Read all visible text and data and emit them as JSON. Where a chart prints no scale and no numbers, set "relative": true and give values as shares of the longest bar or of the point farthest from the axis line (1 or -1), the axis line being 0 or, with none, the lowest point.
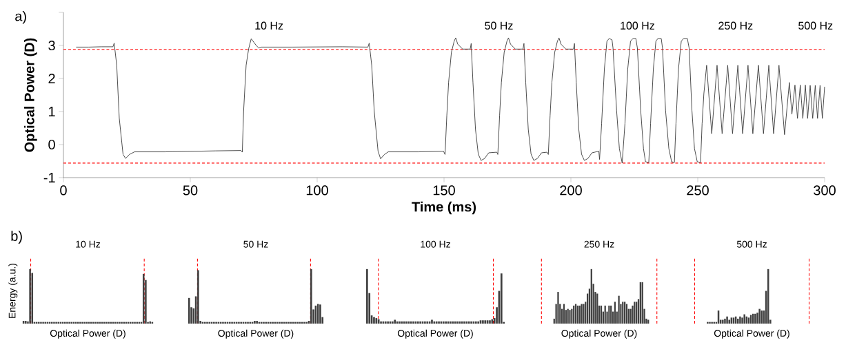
{
  "chart_data": [
    {
      "type": "line",
      "xlabel": "Time (ms)",
      "ylabel": "Optical Power (D)",
      "color": "#404040",
      "xlim": [
        0,
        300
      ],
      "ylim": [
        -1,
        4
      ],
      "xticks": [
        0,
        50,
        100,
        150,
        200,
        250,
        300
      ],
      "yticks": [
        -1,
        0,
        1,
        2,
        3,
        {
          "value": 4,
          "label": null
        }
      ],
      "x": [
        5,
        10,
        15,
        19.5,
        20,
        21,
        22,
        23.5,
        24.5,
        26,
        28,
        40,
        60,
        70,
        70.5,
        71,
        72,
        73,
        74,
        75,
        76,
        77,
        78,
        90,
        110,
        120,
        120.5,
        121.5,
        122.5,
        124,
        125,
        126.5,
        128,
        140,
        149.8,
        150.4,
        151.1,
        151.8,
        152.9,
        154.0,
        154.6,
        155.4,
        157.3,
        160.3,
        160.7,
        161.4,
        162.4,
        163.5,
        164.6,
        166.0,
        167.6,
        170.8,
        171.2,
        171.9,
        172.6,
        173.7,
        174.8,
        175.4,
        176.2,
        178.1,
        181.1,
        181.5,
        182.2,
        183.2,
        184.3,
        185.4,
        186.8,
        188.4,
        190.6,
        191.1,
        191.8,
        192.5,
        193.6,
        194.7,
        195.3,
        196.1,
        198.0,
        201.0,
        201.4,
        202.1,
        203.1,
        204.2,
        205.3,
        206.7,
        208.3,
        211.0,
        211.3,
        212.1,
        213.2,
        214.2,
        215.1,
        216.2,
        216.6,
        218.0,
        219.1,
        220.2,
        221.3,
        222.4,
        223.5,
        224.5,
        225.6,
        226.2,
        227.5,
        228.6,
        229.4,
        230.7,
        231.4,
        232.5,
        233.5,
        234.3,
        235.6,
        236.1,
        237.3,
        238.6,
        239.7,
        240.8,
        241.4,
        242.4,
        243.5,
        244.4,
        245.9,
        246.6,
        247.7,
        248.7,
        249.8,
        251.1,
        251.7,
        252.4,
        253.5,
        255.5,
        257.6,
        259.6,
        261.8,
        263.7,
        265.8,
        267.7,
        269.8,
        271.7,
        273.9,
        275.9,
        278.0,
        279.9,
        282.0,
        284.2,
        286.1,
        287.1,
        288.3,
        289.3,
        290.4,
        291.4,
        292.4,
        293.3,
        294.3,
        295.3,
        296.3,
        297.2,
        298.2,
        299.1,
        300
      ],
      "values": [
        2.95,
        2.95,
        2.96,
        2.96,
        3.07,
        2.4,
        0.8,
        -0.3,
        -0.42,
        -0.3,
        -0.22,
        -0.22,
        -0.19,
        -0.18,
        -0.23,
        1.0,
        2.4,
        2.9,
        3.2,
        3.1,
        3.0,
        2.92,
        2.95,
        2.95,
        2.96,
        2.95,
        3.07,
        2.4,
        1.0,
        -0.2,
        -0.43,
        -0.3,
        -0.22,
        -0.22,
        -0.2,
        -0.3,
        0.88,
        1.88,
        2.79,
        3.13,
        3.23,
        3.04,
        2.89,
        2.89,
        3.06,
        1.88,
        0.46,
        -0.29,
        -0.48,
        -0.42,
        -0.25,
        -0.23,
        -0.3,
        0.88,
        1.88,
        2.79,
        3.13,
        3.23,
        3.04,
        2.89,
        2.89,
        3.06,
        1.88,
        0.46,
        -0.29,
        -0.48,
        -0.42,
        -0.25,
        -0.23,
        -0.3,
        0.88,
        1.88,
        2.79,
        3.13,
        3.23,
        3.04,
        2.89,
        2.89,
        3.06,
        1.88,
        0.46,
        -0.29,
        -0.48,
        -0.42,
        -0.25,
        -0.2,
        -0.45,
        0.63,
        2.29,
        3.13,
        3.21,
        3.17,
        2.92,
        1.04,
        -0.12,
        -0.56,
        0.63,
        2.29,
        3.13,
        3.21,
        3.21,
        2.92,
        1.04,
        -0.12,
        -0.52,
        -0.54,
        0.63,
        2.29,
        3.13,
        3.21,
        3.21,
        2.92,
        1.04,
        -0.12,
        -0.52,
        -0.54,
        0.63,
        2.29,
        3.13,
        3.21,
        3.21,
        2.92,
        1.04,
        -0.12,
        -0.52,
        -0.54,
        0.63,
        1.54,
        2.4,
        0.33,
        2.4,
        0.33,
        2.4,
        0.33,
        2.4,
        0.33,
        2.4,
        0.33,
        2.4,
        0.33,
        2.4,
        0.33,
        2.4,
        0.3,
        1.88,
        0.92,
        1.8,
        0.79,
        1.8,
        0.79,
        1.8,
        0.79,
        1.79,
        0.79,
        1.79,
        0.79,
        1.79,
        0.79,
        1.75
      ],
      "ref_lines": [
        {
          "axis": "y",
          "value": 2.88,
          "color": "#ff0000",
          "line_style": "dashed"
        },
        {
          "axis": "y",
          "value": -0.56,
          "color": "#ff0000",
          "line_style": "dashed"
        }
      ],
      "annotations": [
        "a)",
        "10 Hz",
        "50 Hz",
        "100 Hz",
        "250 Hz",
        "500 Hz"
      ]
    },
    {
      "type": "bar",
      "relative": true,
      "title": "10 Hz",
      "xlabel": "Optical Power (D)",
      "ylabel": "Energy (a.u.)",
      "color": "#404040",
      "categories": [
        null,
        null,
        null,
        null,
        null,
        null,
        null,
        null,
        null,
        null,
        null,
        null,
        null,
        null,
        null,
        null,
        null,
        null,
        null,
        null,
        null,
        null,
        null,
        null,
        null,
        null,
        null,
        null,
        null,
        null,
        null,
        null,
        null,
        null,
        null,
        null,
        null,
        null,
        null,
        null,
        null,
        null,
        null,
        null,
        null,
        null,
        null,
        null,
        null,
        null,
        null,
        null,
        null,
        null,
        null,
        null,
        null,
        null,
        null,
        null
      ],
      "values": [
        0.05,
        0.05,
        0.04,
        1.0,
        0.93,
        0.03,
        0.03,
        0.03,
        0.03,
        0.03,
        0.03,
        0.03,
        0.03,
        0.03,
        0.03,
        0.03,
        0.03,
        0.03,
        0.03,
        0.03,
        0.03,
        0.03,
        0.03,
        0.03,
        0.03,
        0.03,
        0.03,
        0.03,
        0.03,
        0.03,
        0.03,
        0.03,
        0.03,
        0.03,
        0.03,
        0.03,
        0.03,
        0.03,
        0.03,
        0.03,
        0.03,
        0.03,
        0.03,
        0.03,
        0.03,
        0.03,
        0.03,
        0.03,
        0.03,
        0.03,
        0.03,
        0.03,
        0.03,
        0.03,
        0.03,
        0.91,
        0.8,
        0.03,
        0.04,
        0.03
      ],
      "annotations": [
        "b)"
      ]
    },
    {
      "type": "bar",
      "relative": true,
      "title": "50 Hz",
      "xlabel": "Optical Power (D)",
      "color": "#404040",
      "categories": [
        null,
        null,
        null,
        null,
        null,
        null,
        null,
        null,
        null,
        null,
        null,
        null,
        null,
        null,
        null,
        null,
        null,
        null,
        null,
        null,
        null,
        null,
        null,
        null,
        null,
        null,
        null,
        null,
        null,
        null,
        null,
        null,
        null,
        null,
        null,
        null,
        null,
        null,
        null,
        null,
        null,
        null,
        null,
        null,
        null,
        null,
        null,
        null,
        null,
        null,
        null,
        null,
        null,
        null,
        null,
        null,
        null,
        null,
        null,
        null
      ],
      "values": [
        0.47,
        0.3,
        0.28,
        0.5,
        0.98,
        0.05,
        0.03,
        0.03,
        0.03,
        0.03,
        0.03,
        0.03,
        0.03,
        0.03,
        0.03,
        0.03,
        0.03,
        0.03,
        0.03,
        0.03,
        0.03,
        0.03,
        0.03,
        0.03,
        0.03,
        0.03,
        0.03,
        0.03,
        0.03,
        0.05,
        0.05,
        0.03,
        0.03,
        0.03,
        0.03,
        0.03,
        0.03,
        0.03,
        0.03,
        0.03,
        0.03,
        0.03,
        0.03,
        0.03,
        0.03,
        0.03,
        0.03,
        0.03,
        0.03,
        0.03,
        0.03,
        0.03,
        0.03,
        0.05,
        1.0,
        0.26,
        0.33,
        0.36,
        0.35,
        0.12
      ]
    },
    {
      "type": "bar",
      "relative": true,
      "title": "100 Hz",
      "xlabel": "Optical Power (D)",
      "color": "#404040",
      "categories": [
        null,
        null,
        null,
        null,
        null,
        null,
        null,
        null,
        null,
        null,
        null,
        null,
        null,
        null,
        null,
        null,
        null,
        null,
        null,
        null,
        null,
        null,
        null,
        null,
        null,
        null,
        null,
        null,
        null,
        null,
        null,
        null,
        null,
        null,
        null,
        null,
        null,
        null,
        null,
        null,
        null,
        null,
        null,
        null,
        null,
        null,
        null,
        null,
        null,
        null,
        null,
        null,
        null,
        null,
        null,
        null,
        null,
        null,
        null,
        null
      ],
      "values": [
        1.0,
        0.56,
        0.15,
        0.12,
        0.1,
        0.08,
        0.04,
        0.04,
        0.04,
        0.04,
        0.04,
        0.04,
        0.07,
        0.04,
        0.04,
        0.04,
        0.04,
        0.04,
        0.04,
        0.04,
        0.04,
        0.04,
        0.04,
        0.04,
        0.04,
        0.04,
        0.04,
        0.04,
        0.07,
        0.04,
        0.04,
        0.04,
        0.04,
        0.04,
        0.04,
        0.04,
        0.04,
        0.04,
        0.04,
        0.04,
        0.04,
        0.04,
        0.04,
        0.04,
        0.04,
        0.04,
        0.04,
        0.04,
        0.04,
        0.06,
        0.06,
        0.06,
        0.06,
        0.06,
        0.08,
        0.1,
        0.3,
        0.6,
        0.92,
        0.03
      ]
    },
    {
      "type": "bar",
      "relative": true,
      "title": "250 Hz",
      "xlabel": "Optical Power (D)",
      "color": "#404040",
      "categories": [
        null,
        null,
        null,
        null,
        null,
        null,
        null,
        null,
        null,
        null,
        null,
        null,
        null,
        null,
        null,
        null,
        null,
        null,
        null,
        null,
        null,
        null,
        null,
        null,
        null,
        null,
        null,
        null,
        null,
        null,
        null,
        null,
        null,
        null,
        null,
        null,
        null,
        null,
        null,
        null,
        null,
        null,
        null,
        null,
        null,
        null,
        null,
        null,
        null
      ],
      "values": [
        0.09,
        0.36,
        0.58,
        0.36,
        0.27,
        0.36,
        0.25,
        0.27,
        0.25,
        0.27,
        0.33,
        0.36,
        0.33,
        0.33,
        0.36,
        0.36,
        0.4,
        0.55,
        0.64,
        1.0,
        0.73,
        0.58,
        0.55,
        0.33,
        0.33,
        0.22,
        0.33,
        0.22,
        0.33,
        0.33,
        0.22,
        0.4,
        0.22,
        0.51,
        0.36,
        0.4,
        0.4,
        0.36,
        0.27,
        0.27,
        0.33,
        0.4,
        0.4,
        0.45,
        0.76,
        0.76,
        0.27,
        0.09,
        0.07
      ]
    },
    {
      "type": "bar",
      "relative": true,
      "title": "500 Hz",
      "xlabel": "Optical Power (D)",
      "color": "#404040",
      "categories": [
        null,
        null,
        null,
        null,
        null,
        null,
        null,
        null,
        null,
        null,
        null,
        null,
        null,
        null,
        null,
        null,
        null,
        null,
        null,
        null,
        null,
        null,
        null,
        null,
        null,
        null,
        null,
        null,
        null,
        null
      ],
      "values": [
        0.03,
        0.03,
        0.03,
        0.03,
        0.03,
        0.24,
        0.07,
        0.07,
        0.09,
        0.13,
        0.07,
        0.11,
        0.11,
        0.13,
        0.09,
        0.13,
        0.11,
        0.17,
        0.13,
        0.11,
        0.16,
        0.18,
        0.18,
        0.2,
        0.27,
        0.24,
        0.24,
        0.6,
        1.0,
        0.07
      ]
    }
  ]
}
